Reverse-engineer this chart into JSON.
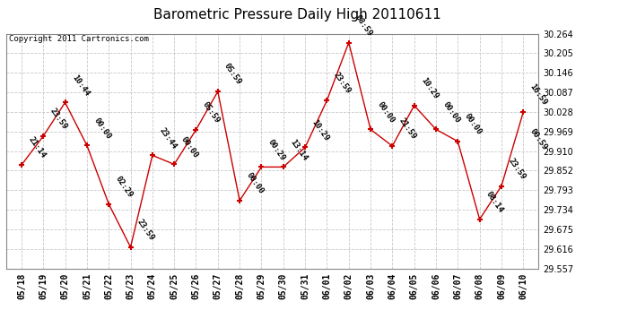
{
  "title": "Barometric Pressure Daily High 20110611",
  "copyright": "Copyright 2011 Cartronics.com",
  "x_labels": [
    "05/18",
    "05/19",
    "05/20",
    "05/21",
    "05/22",
    "05/23",
    "05/24",
    "05/25",
    "05/26",
    "05/27",
    "05/28",
    "05/29",
    "05/30",
    "05/31",
    "06/01",
    "06/02",
    "06/03",
    "06/04",
    "06/05",
    "06/06",
    "06/07",
    "06/08",
    "06/09",
    "06/10"
  ],
  "y_values": [
    29.869,
    29.956,
    30.057,
    29.928,
    29.752,
    29.622,
    29.898,
    29.871,
    29.975,
    30.09,
    29.762,
    29.863,
    29.863,
    29.922,
    30.063,
    30.237,
    29.976,
    29.926,
    30.048,
    29.976,
    29.94,
    29.706,
    29.806,
    30.028
  ],
  "point_labels": [
    "21:14",
    "23:59",
    "10:44",
    "00:00",
    "02:29",
    "23:59",
    "23:44",
    "00:00",
    "05:59",
    "05:59",
    "00:00",
    "00:29",
    "13:14",
    "10:29",
    "23:59",
    "08:59",
    "00:00",
    "21:59",
    "10:29",
    "00:00",
    "00:00",
    "08:14",
    "23:59",
    "16:59"
  ],
  "extra_label": "00:59",
  "extra_label_idx": 23,
  "y_min": 29.557,
  "y_max": 30.264,
  "y_ticks": [
    29.557,
    29.616,
    29.675,
    29.734,
    29.793,
    29.852,
    29.91,
    29.969,
    30.028,
    30.087,
    30.146,
    30.205,
    30.264
  ],
  "line_color": "#cc0000",
  "marker_color": "#cc0000",
  "bg_color": "#ffffff",
  "plot_bg_color": "#ffffff",
  "grid_color": "#c8c8c8",
  "title_fontsize": 11,
  "copyright_fontsize": 6.5,
  "label_fontsize": 6.5,
  "tick_fontsize": 7
}
